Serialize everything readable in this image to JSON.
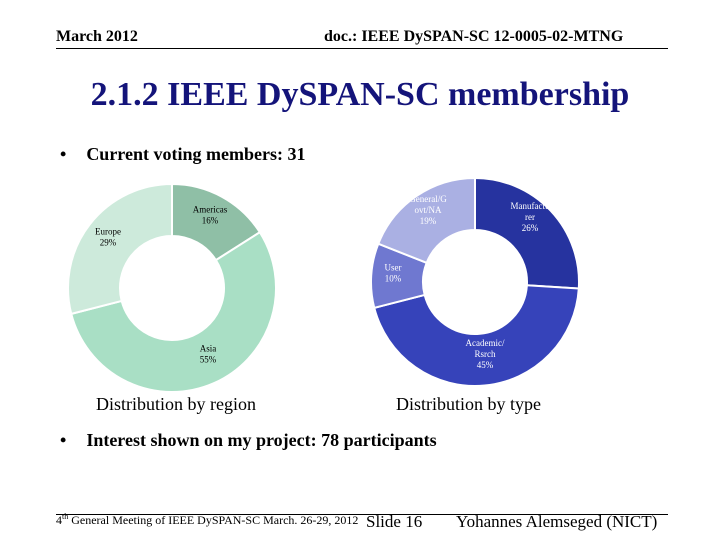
{
  "header": {
    "date": "March 2012",
    "doc_id": "doc.: IEEE DySPAN-SC 12-0005-02-MTNG"
  },
  "title": "2.1.2 IEEE DySPAN-SC membership",
  "bullets": {
    "marker": "•",
    "voting": "Current voting members: 31",
    "interest": "Interest shown on my project: 78 participants"
  },
  "chart_data": [
    {
      "type": "pie",
      "title": "Distribution by region",
      "slices": [
        {
          "label": "Americas",
          "value": 16,
          "label_text": "16%",
          "color": "#8fbfa6"
        },
        {
          "label": "Asia",
          "value": 55,
          "label_text": "55%",
          "color": "#a9dfc5"
        },
        {
          "label": "Europe",
          "value": 29,
          "label_text": "29%",
          "color": "#cdeadb"
        }
      ]
    },
    {
      "type": "pie",
      "title": "Distribution by type",
      "slices": [
        {
          "label": "Manufactu rer",
          "value": 26,
          "label_text": "26%",
          "color": "#26339f"
        },
        {
          "label": "Academic/ Rsrch",
          "value": 45,
          "label_text": "45%",
          "color": "#3643ba"
        },
        {
          "label": "User",
          "value": 10,
          "label_text": "10%",
          "color": "#6f78d0"
        },
        {
          "label": "General/G ovt/NA",
          "value": 19,
          "label_text": "19%",
          "color": "#aab0e3"
        }
      ]
    }
  ],
  "footer": {
    "meeting_num": "4",
    "meeting_sup": "th",
    "meeting_text": "General Meeting of IEEE DySPAN-SC March. 26-29, 2012",
    "slide": "Slide 16",
    "author": "Yohannes Alemseged (NICT)"
  },
  "colors": {
    "title": "#14147a"
  }
}
